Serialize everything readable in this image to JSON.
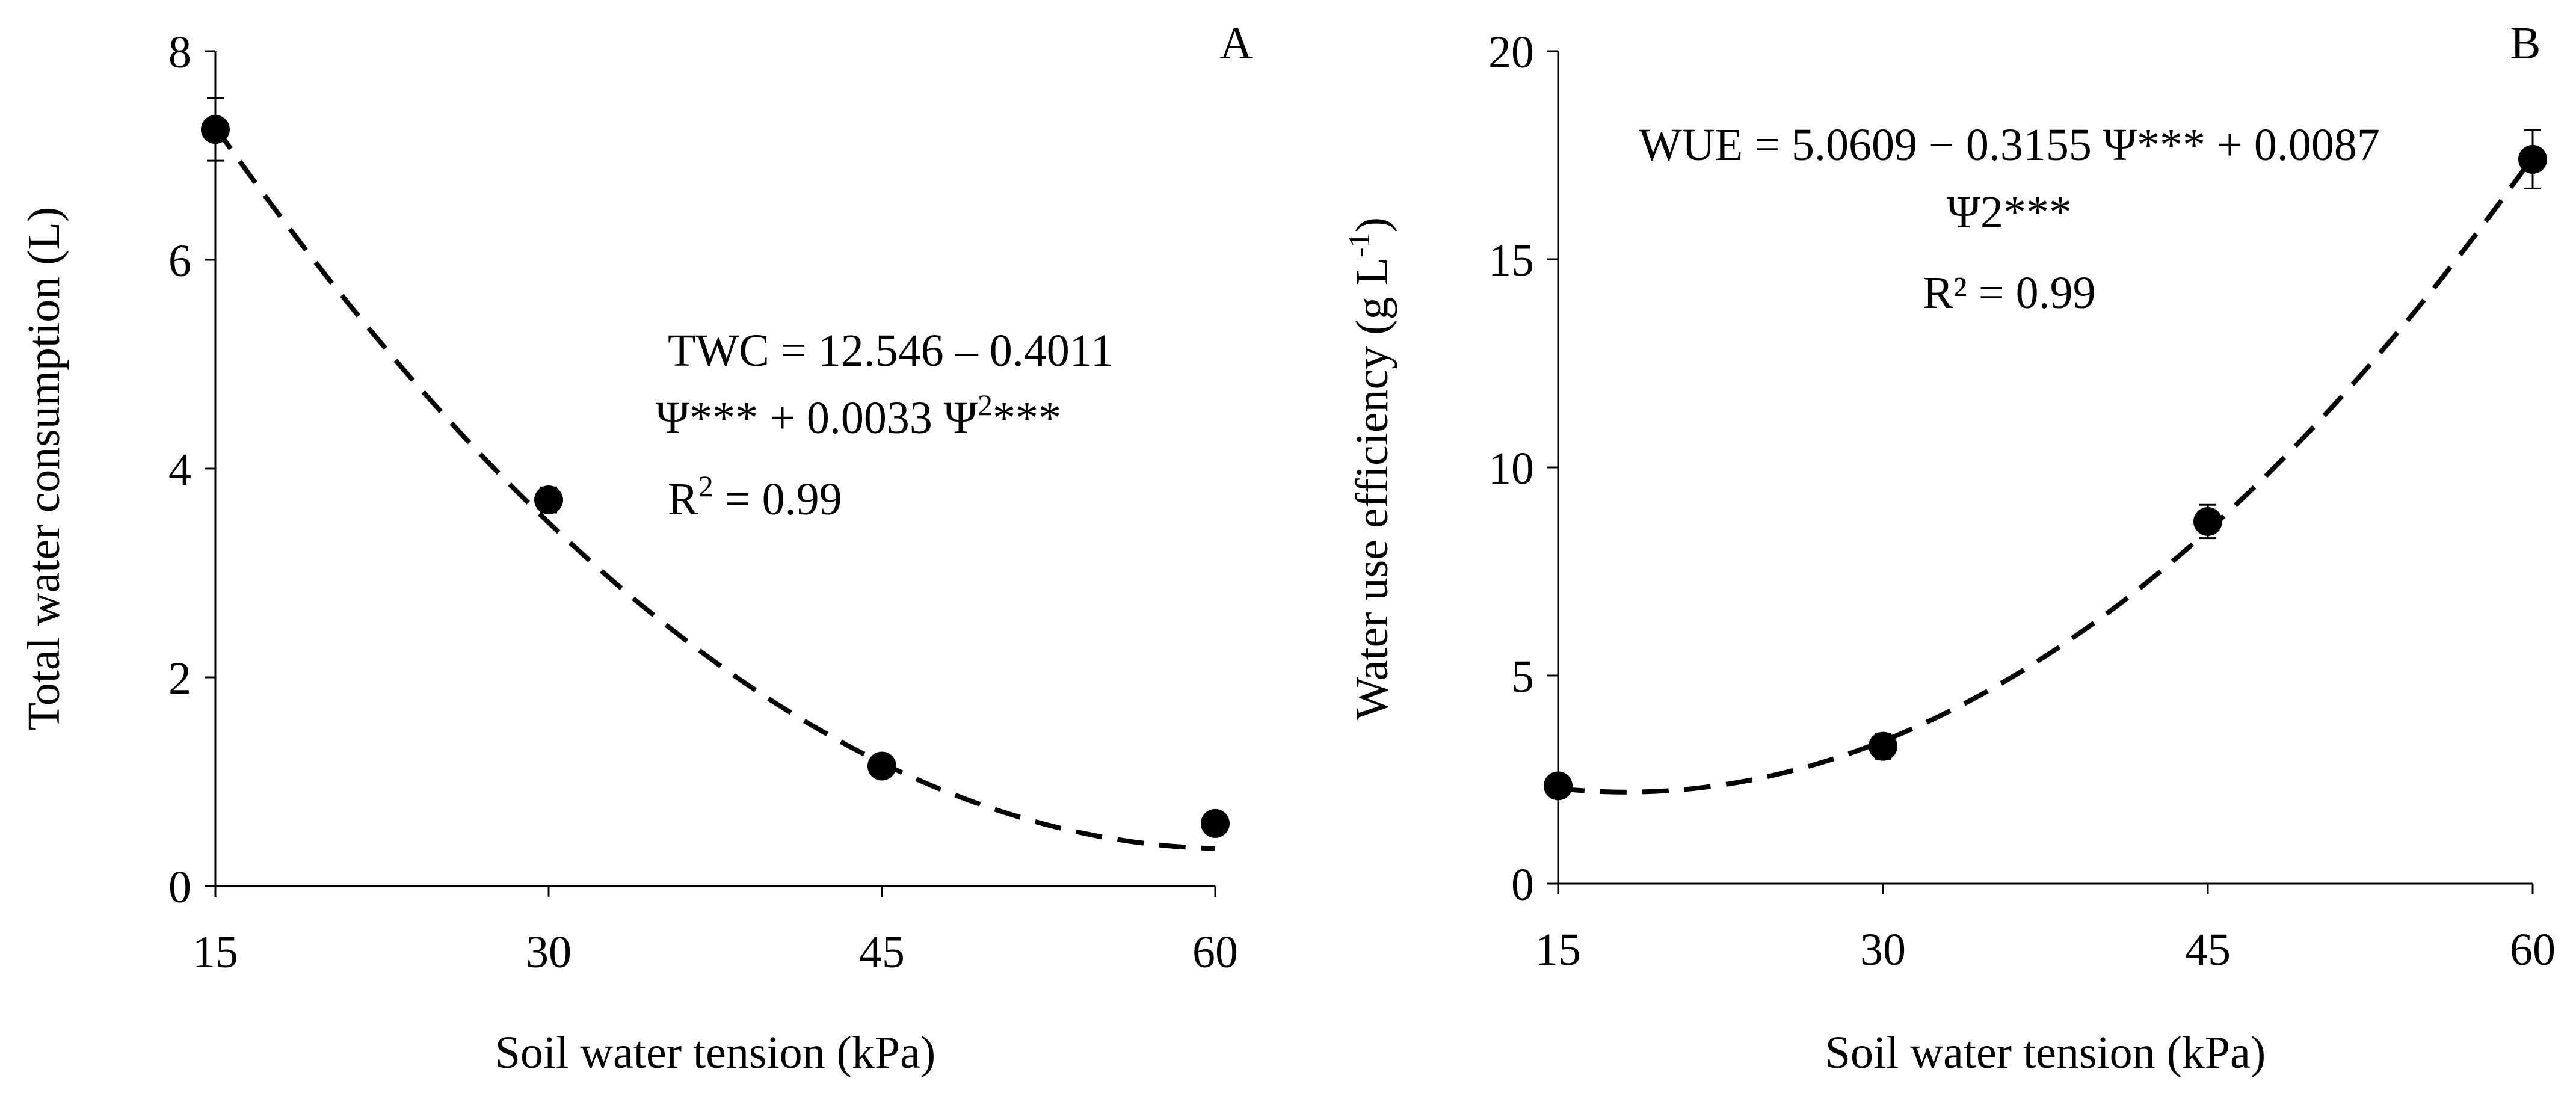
{
  "chart_data": [
    {
      "type": "scatter",
      "panel_label": "A",
      "xlabel": "Soil water tension (kPa)",
      "ylabel": "Total water consumption (L)",
      "xlim": [
        15,
        60
      ],
      "ylim": [
        0,
        8
      ],
      "x_ticks": [
        15,
        30,
        45,
        60
      ],
      "y_ticks": [
        0,
        2,
        4,
        6,
        8
      ],
      "x": [
        15,
        30,
        45,
        60
      ],
      "values": [
        7.25,
        3.7,
        1.15,
        0.6
      ],
      "errors": [
        0.3,
        0.12,
        0.08,
        0.05
      ],
      "fit": {
        "style": "dashed",
        "intercept": 12.546,
        "linear": -0.4011,
        "quadratic": 0.0033
      },
      "equation": {
        "line1": "TWC = 12.546 – 0.4011",
        "line2_a": "Ψ*** + 0.0033 Ψ",
        "line2_sup": "2",
        "line2_b": "***",
        "r2_a": "R",
        "r2_sup": "2",
        "r2_b": " = 0.99"
      }
    },
    {
      "type": "scatter",
      "panel_label": "B",
      "xlabel": "Soil water tension (kPa)",
      "ylabel": "Water use efficiency (g L",
      "ylabel_sup": "-1",
      "ylabel_end": ")",
      "xlim": [
        15,
        60
      ],
      "ylim": [
        0,
        20
      ],
      "x_ticks": [
        15,
        30,
        45,
        60
      ],
      "y_ticks": [
        0,
        5,
        10,
        15,
        20
      ],
      "x": [
        15,
        30,
        45,
        60
      ],
      "values": [
        2.35,
        3.3,
        8.7,
        17.4
      ],
      "errors": [
        0.15,
        0.3,
        0.4,
        0.7
      ],
      "fit": {
        "style": "dashed",
        "intercept": 5.0609,
        "linear": -0.3155,
        "quadratic": 0.0087
      },
      "equation": {
        "line1": "WUE = 5.0609 − 0.3155 Ψ*** + 0.0087",
        "line2": "Ψ2***",
        "r2": "R² = 0.99"
      }
    }
  ]
}
